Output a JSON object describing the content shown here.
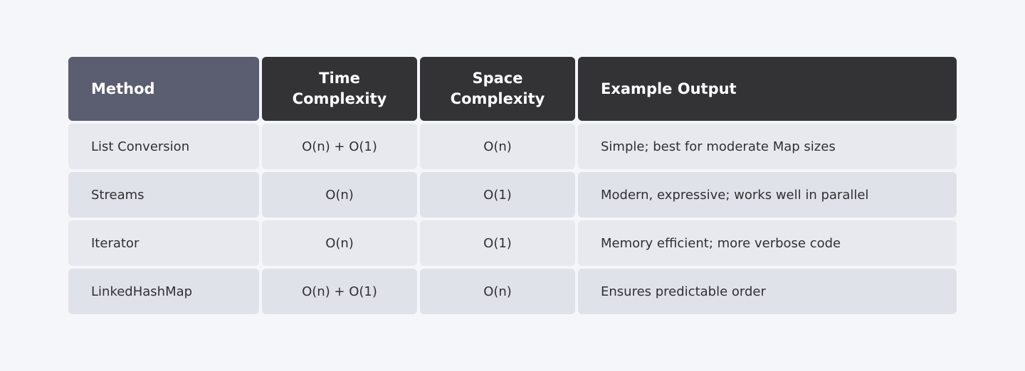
{
  "table": {
    "header": [
      "Method",
      "Time Complexity",
      "Space Complexity",
      "Example Output"
    ],
    "rows": [
      [
        "List Conversion",
        "O(n) + O(1)",
        "O(n)",
        "Simple; best for moderate Map sizes"
      ],
      [
        "Streams",
        "O(n)",
        "O(1)",
        "Modern, expressive; works well in parallel"
      ],
      [
        "Iterator",
        "O(n)",
        "O(1)",
        "Memory efficient; more verbose code"
      ],
      [
        "LinkedHashMap",
        "O(n) + O(1)",
        "O(n)",
        "Ensures predictable order"
      ]
    ]
  }
}
